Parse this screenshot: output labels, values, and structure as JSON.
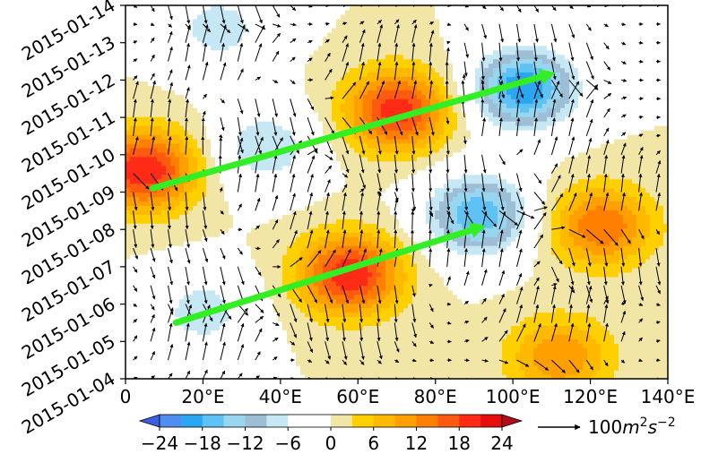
{
  "chart_data": {
    "type": "heatmap",
    "title": "",
    "xlabel": "",
    "ylabel": "",
    "x_ticks": [
      "0",
      "20°E",
      "40°E",
      "60°E",
      "80°E",
      "100°E",
      "120°E",
      "140°E"
    ],
    "x_tick_values": [
      0,
      20,
      40,
      60,
      80,
      100,
      120,
      140
    ],
    "y_ticks": [
      "2015-01-04",
      "2015-01-05",
      "2015-01-06",
      "2015-01-07",
      "2015-01-08",
      "2015-01-09",
      "2015-01-10",
      "2015-01-11",
      "2015-01-12",
      "2015-01-13",
      "2015-01-14"
    ],
    "xlim": [
      0,
      140
    ],
    "ylim": [
      "2015-01-04",
      "2015-01-14"
    ],
    "colorbar": {
      "levels": [
        -27,
        -24,
        -21,
        -18,
        -15,
        -12,
        -9,
        -6,
        -3,
        0,
        3,
        6,
        9,
        12,
        15,
        18,
        21,
        24,
        27
      ],
      "colors": [
        "#3c5fdf",
        "#4f8df0",
        "#2aa6f2",
        "#5ec3f4",
        "#98d6f0",
        "#9ebed6",
        "#c6e8f4",
        "#ffffff",
        "#ffffff",
        "#f2e6a6",
        "#ffd000",
        "#ffba00",
        "#ffa000",
        "#ff7f00",
        "#ff5a10",
        "#ff2b16",
        "#e60d0d",
        "#b20b1c"
      ],
      "tick_labels": [
        "−24",
        "−18",
        "−12",
        "−6",
        "0",
        "6",
        "12",
        "18",
        "24"
      ],
      "tick_values": [
        -24,
        -18,
        -12,
        -6,
        0,
        6,
        12,
        18,
        24
      ]
    },
    "reference_vector": {
      "label_prefix": "100",
      "label_unit": "m",
      "label_sup1": "2",
      "label_unit2": "s",
      "label_sup2": "−2"
    },
    "field_anomaly_centers": [
      {
        "lon": 5,
        "day": 5.6,
        "value": 21
      },
      {
        "lon": 20,
        "day": 1.8,
        "value": -8
      },
      {
        "lon": 36,
        "day": 6.2,
        "value": -9
      },
      {
        "lon": 24,
        "day": 9.4,
        "value": -8
      },
      {
        "lon": 58,
        "day": 2.8,
        "value": 21
      },
      {
        "lon": 70,
        "day": 7.2,
        "value": 20
      },
      {
        "lon": 91,
        "day": 4.4,
        "value": -18
      },
      {
        "lon": 103,
        "day": 7.8,
        "value": -21
      },
      {
        "lon": 123,
        "day": 4.1,
        "value": 15
      },
      {
        "lon": 112,
        "day": 0.6,
        "value": 12
      }
    ],
    "arrows_overlay": [
      {
        "from": [
          7,
          5.1
        ],
        "to": [
          111,
          8.2
        ],
        "color": "#33ee22"
      },
      {
        "from": [
          13,
          1.5
        ],
        "to": [
          93,
          4.1
        ],
        "color": "#33ee22"
      }
    ]
  }
}
